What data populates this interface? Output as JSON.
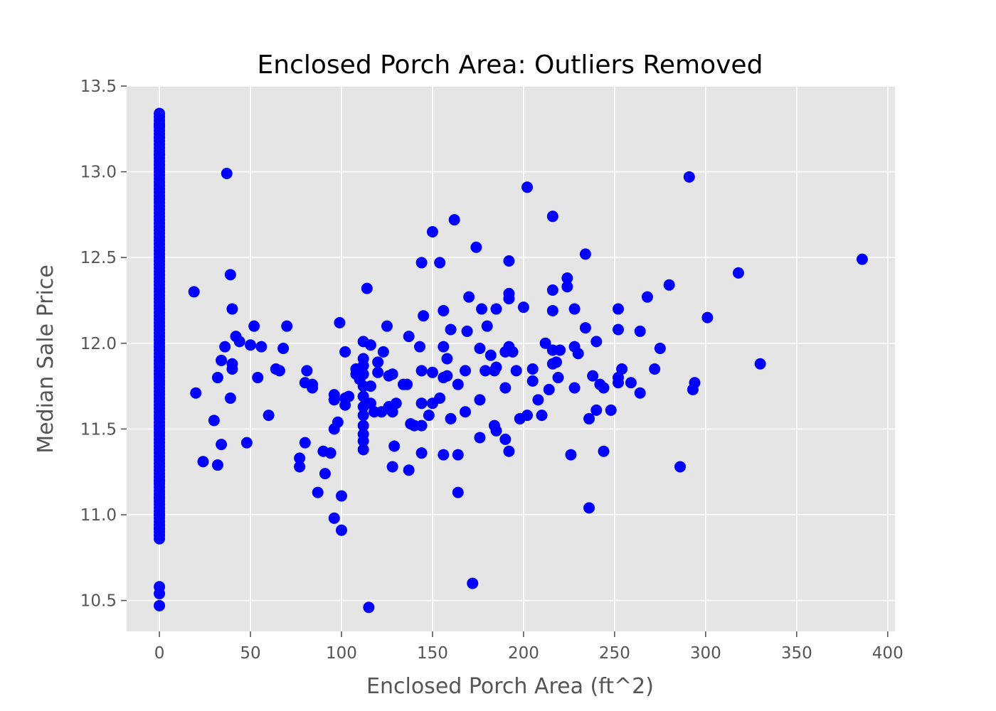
{
  "chart_data": {
    "type": "scatter",
    "title": "Enclosed Porch Area: Outliers Removed",
    "xlabel": "Enclosed Porch Area (ft^2)",
    "ylabel": "Median Sale Price",
    "xlim": [
      -18,
      404
    ],
    "ylim": [
      10.32,
      13.5
    ],
    "xticks": [
      0,
      50,
      100,
      150,
      200,
      250,
      300,
      350,
      400
    ],
    "yticks": [
      10.5,
      11.0,
      11.5,
      12.0,
      12.5,
      13.0,
      13.5
    ],
    "xtick_labels": [
      "0",
      "50",
      "100",
      "150",
      "200",
      "250",
      "300",
      "350",
      "400"
    ],
    "ytick_labels": [
      "10.5",
      "11.0",
      "11.5",
      "12.0",
      "12.5",
      "13.0",
      "13.5"
    ],
    "grid": true,
    "background_color": "#e5e5e5",
    "grid_color": "#ffffff",
    "marker_color": "#0000ff",
    "zero_column": {
      "x": 0,
      "ymin": 10.86,
      "ymax": 13.34,
      "extra_y": [
        10.47,
        10.54,
        10.58,
        13.27,
        13.2,
        13.1,
        11.2,
        11.1,
        11.0,
        10.92
      ]
    },
    "points": [
      [
        19,
        12.3
      ],
      [
        20,
        11.71
      ],
      [
        24,
        11.31
      ],
      [
        30,
        11.55
      ],
      [
        32,
        11.29
      ],
      [
        32,
        11.8
      ],
      [
        34,
        11.9
      ],
      [
        34,
        11.41
      ],
      [
        36,
        11.98
      ],
      [
        37,
        12.99
      ],
      [
        39,
        12.4
      ],
      [
        39,
        11.68
      ],
      [
        40,
        11.88
      ],
      [
        40,
        11.85
      ],
      [
        40,
        12.2
      ],
      [
        42,
        12.04
      ],
      [
        44,
        12.01
      ],
      [
        48,
        11.42
      ],
      [
        50,
        11.99
      ],
      [
        52,
        12.1
      ],
      [
        54,
        11.8
      ],
      [
        56,
        11.98
      ],
      [
        60,
        11.58
      ],
      [
        64,
        11.85
      ],
      [
        66,
        11.84
      ],
      [
        68,
        11.97
      ],
      [
        70,
        12.1
      ],
      [
        77,
        11.33
      ],
      [
        77,
        11.28
      ],
      [
        80,
        11.42
      ],
      [
        80,
        11.77
      ],
      [
        81,
        11.84
      ],
      [
        84,
        11.76
      ],
      [
        84,
        11.74
      ],
      [
        87,
        11.13
      ],
      [
        90,
        11.37
      ],
      [
        91,
        11.24
      ],
      [
        94,
        11.36
      ],
      [
        96,
        10.98
      ],
      [
        96,
        11.7
      ],
      [
        96,
        11.5
      ],
      [
        96,
        11.67
      ],
      [
        98,
        11.54
      ],
      [
        99,
        12.12
      ],
      [
        100,
        10.91
      ],
      [
        100,
        11.11
      ],
      [
        102,
        11.68
      ],
      [
        102,
        11.95
      ],
      [
        102,
        11.64
      ],
      [
        104,
        11.69
      ],
      [
        108,
        11.85
      ],
      [
        108,
        11.82
      ],
      [
        110,
        11.79
      ],
      [
        112,
        12.01
      ],
      [
        112,
        11.91
      ],
      [
        112,
        11.87
      ],
      [
        112,
        11.82
      ],
      [
        112,
        11.75
      ],
      [
        112,
        11.69
      ],
      [
        112,
        11.63
      ],
      [
        112,
        11.58
      ],
      [
        112,
        11.52
      ],
      [
        112,
        11.47
      ],
      [
        112,
        11.43
      ],
      [
        112,
        11.38
      ],
      [
        114,
        12.32
      ],
      [
        115,
        10.46
      ],
      [
        116,
        11.99
      ],
      [
        116,
        11.75
      ],
      [
        116,
        11.65
      ],
      [
        118,
        11.6
      ],
      [
        120,
        11.83
      ],
      [
        120,
        11.89
      ],
      [
        122,
        11.6
      ],
      [
        123,
        11.95
      ],
      [
        125,
        12.1
      ],
      [
        126,
        11.63
      ],
      [
        126,
        11.81
      ],
      [
        128,
        11.82
      ],
      [
        128,
        11.28
      ],
      [
        128,
        11.6
      ],
      [
        129,
        11.4
      ],
      [
        130,
        11.65
      ],
      [
        134,
        11.76
      ],
      [
        136,
        11.76
      ],
      [
        137,
        11.26
      ],
      [
        137,
        12.04
      ],
      [
        138,
        11.53
      ],
      [
        140,
        11.52
      ],
      [
        143,
        11.98
      ],
      [
        144,
        11.84
      ],
      [
        144,
        11.65
      ],
      [
        144,
        11.36
      ],
      [
        144,
        11.52
      ],
      [
        144,
        12.47
      ],
      [
        145,
        12.16
      ],
      [
        148,
        11.58
      ],
      [
        150,
        12.65
      ],
      [
        150,
        11.83
      ],
      [
        150,
        11.65
      ],
      [
        154,
        11.68
      ],
      [
        154,
        12.47
      ],
      [
        156,
        12.19
      ],
      [
        156,
        11.98
      ],
      [
        156,
        11.8
      ],
      [
        156,
        11.35
      ],
      [
        158,
        11.91
      ],
      [
        158,
        11.81
      ],
      [
        160,
        11.56
      ],
      [
        160,
        12.08
      ],
      [
        162,
        12.72
      ],
      [
        164,
        11.76
      ],
      [
        164,
        11.13
      ],
      [
        164,
        11.35
      ],
      [
        168,
        11.84
      ],
      [
        168,
        11.6
      ],
      [
        169,
        12.07
      ],
      [
        170,
        12.27
      ],
      [
        172,
        10.6
      ],
      [
        174,
        12.56
      ],
      [
        176,
        11.67
      ],
      [
        176,
        11.45
      ],
      [
        176,
        11.97
      ],
      [
        177,
        12.2
      ],
      [
        179,
        11.84
      ],
      [
        180,
        12.1
      ],
      [
        182,
        11.93
      ],
      [
        184,
        11.84
      ],
      [
        184,
        11.52
      ],
      [
        185,
        11.49
      ],
      [
        185,
        11.86
      ],
      [
        185,
        12.2
      ],
      [
        190,
        11.74
      ],
      [
        190,
        11.95
      ],
      [
        190,
        11.44
      ],
      [
        192,
        12.48
      ],
      [
        192,
        11.37
      ],
      [
        192,
        12.29
      ],
      [
        192,
        12.26
      ],
      [
        192,
        11.98
      ],
      [
        194,
        11.95
      ],
      [
        196,
        11.84
      ],
      [
        198,
        11.56
      ],
      [
        200,
        12.21
      ],
      [
        202,
        12.91
      ],
      [
        202,
        11.58
      ],
      [
        205,
        11.85
      ],
      [
        205,
        11.78
      ],
      [
        208,
        11.67
      ],
      [
        210,
        11.58
      ],
      [
        212,
        12.0
      ],
      [
        214,
        11.73
      ],
      [
        216,
        12.74
      ],
      [
        216,
        12.31
      ],
      [
        216,
        12.19
      ],
      [
        216,
        11.96
      ],
      [
        216,
        11.88
      ],
      [
        218,
        11.89
      ],
      [
        219,
        11.8
      ],
      [
        220,
        11.96
      ],
      [
        224,
        12.38
      ],
      [
        224,
        12.33
      ],
      [
        226,
        11.35
      ],
      [
        228,
        12.2
      ],
      [
        228,
        11.98
      ],
      [
        228,
        11.74
      ],
      [
        230,
        11.94
      ],
      [
        234,
        12.52
      ],
      [
        234,
        12.09
      ],
      [
        236,
        11.04
      ],
      [
        236,
        11.56
      ],
      [
        238,
        11.81
      ],
      [
        240,
        12.01
      ],
      [
        240,
        11.61
      ],
      [
        242,
        11.76
      ],
      [
        244,
        11.37
      ],
      [
        244,
        11.74
      ],
      [
        248,
        11.61
      ],
      [
        252,
        12.2
      ],
      [
        252,
        12.08
      ],
      [
        252,
        11.8
      ],
      [
        252,
        11.77
      ],
      [
        254,
        11.85
      ],
      [
        259,
        11.77
      ],
      [
        264,
        12.07
      ],
      [
        264,
        11.71
      ],
      [
        268,
        12.27
      ],
      [
        272,
        11.85
      ],
      [
        275,
        11.97
      ],
      [
        280,
        12.34
      ],
      [
        286,
        11.28
      ],
      [
        291,
        12.97
      ],
      [
        293,
        11.73
      ],
      [
        294,
        11.77
      ],
      [
        301,
        12.15
      ],
      [
        318,
        12.41
      ],
      [
        330,
        11.88
      ],
      [
        386,
        12.49
      ]
    ]
  }
}
